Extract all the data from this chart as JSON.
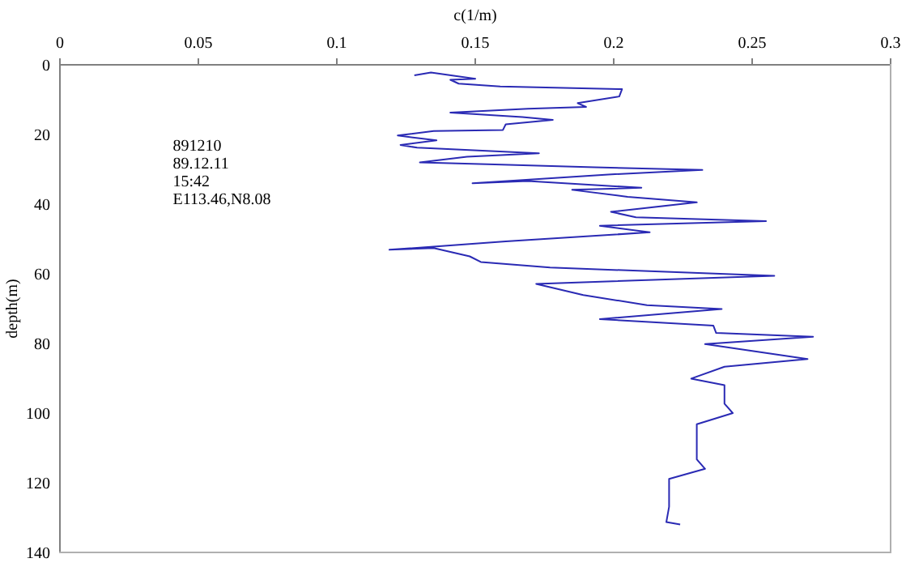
{
  "chart_data": {
    "type": "line",
    "xlabel": "c(1/m)",
    "ylabel": "depth(m)",
    "annotations": [
      "891210",
      "89.12.11",
      "15:42",
      "E113.46,N8.08"
    ],
    "xlim": [
      0,
      0.3
    ],
    "xticks": [
      0,
      0.05,
      0.1,
      0.15,
      0.2,
      0.25,
      0.3
    ],
    "ylim": [
      140,
      0
    ],
    "yticks": [
      0,
      20,
      40,
      60,
      80,
      100,
      120,
      140
    ],
    "grid": false,
    "legend": false,
    "marker": "none",
    "line_style": "solid",
    "series": [
      {
        "color": "#2a2ab4",
        "x": [
          0.128,
          0.134,
          0.15,
          0.141,
          0.144,
          0.159,
          0.182,
          0.203,
          0.202,
          0.187,
          0.19,
          0.169,
          0.141,
          0.167,
          0.178,
          0.161,
          0.16,
          0.135,
          0.122,
          0.136,
          0.123,
          0.129,
          0.173,
          0.147,
          0.13,
          0.157,
          0.193,
          0.232,
          0.198,
          0.149,
          0.169,
          0.21,
          0.185,
          0.205,
          0.23,
          0.199,
          0.208,
          0.255,
          0.195,
          0.213,
          0.161,
          0.119,
          0.135,
          0.148,
          0.152,
          0.177,
          0.258,
          0.172,
          0.189,
          0.212,
          0.239,
          0.195,
          0.236,
          0.237,
          0.272,
          0.233,
          0.27,
          0.24,
          0.228,
          0.24,
          0.24,
          0.243,
          0.23,
          0.23,
          0.233,
          0.22,
          0.22,
          0.219,
          0.224
        ],
        "values": [
          3.0,
          2.2,
          4.0,
          4.3,
          5.4,
          6.2,
          6.6,
          7.0,
          9.1,
          11.0,
          12.1,
          12.6,
          13.7,
          15.0,
          15.8,
          17.1,
          18.7,
          19.0,
          20.3,
          21.7,
          23.0,
          23.8,
          25.4,
          26.4,
          28.0,
          28.6,
          29.4,
          30.2,
          31.5,
          34.0,
          33.4,
          35.3,
          35.9,
          37.9,
          39.5,
          42.2,
          43.8,
          44.9,
          46.2,
          48.1,
          50.7,
          53.1,
          52.6,
          55.0,
          56.6,
          58.2,
          60.6,
          62.9,
          66.1,
          69.0,
          70.1,
          73.0,
          74.9,
          77.0,
          78.1,
          80.2,
          84.5,
          86.7,
          90.1,
          92.0,
          97.3,
          100.0,
          103.2,
          113.3,
          116.0,
          118.9,
          126.9,
          131.3,
          132.0
        ]
      }
    ]
  }
}
